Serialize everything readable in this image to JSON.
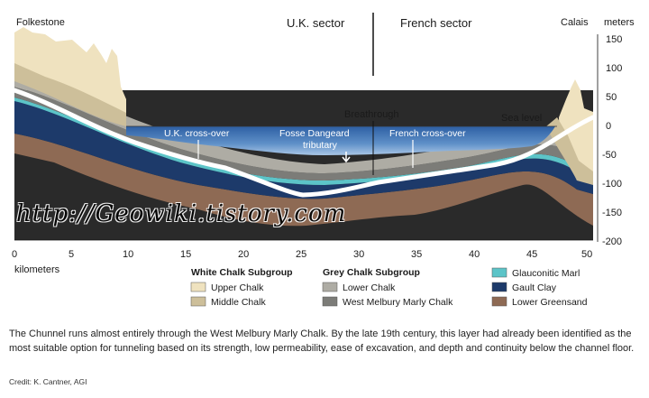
{
  "diagram": {
    "places": {
      "left": "Folkestone",
      "right": "Calais"
    },
    "sectors": {
      "uk": "U.K. sector",
      "french": "French sector"
    },
    "y_axis": {
      "unit": "meters",
      "ticks": [
        "150",
        "100",
        "50",
        "0",
        "-50",
        "-100",
        "-150",
        "-200"
      ]
    },
    "x_axis": {
      "label": "kilometers",
      "ticks": [
        "0",
        "5",
        "10",
        "15",
        "20",
        "25",
        "30",
        "35",
        "40",
        "45",
        "50"
      ]
    },
    "annotations": {
      "uk_crossover": "U.K. cross-over",
      "fosse_1": "Fosse Dangeard",
      "fosse_2": "tributary",
      "breakthrough": "Breathrough",
      "french_crossover": "French cross-over",
      "sea_level": "Sea level"
    }
  },
  "legend": {
    "white_chalk": {
      "title": "White Chalk Subgroup",
      "items": [
        {
          "label": "Upper Chalk",
          "color": "#efe2bf"
        },
        {
          "label": "Middle Chalk",
          "color": "#cdbf9a"
        }
      ]
    },
    "grey_chalk": {
      "title": "Grey Chalk Subgroup",
      "items": [
        {
          "label": "Lower Chalk",
          "color": "#aeaca4"
        },
        {
          "label": "West Melbury Marly Chalk",
          "color": "#7c7c78"
        }
      ]
    },
    "other": {
      "items": [
        {
          "label": "Glauconitic Marl",
          "color": "#5cc4c8"
        },
        {
          "label": "Gault Clay",
          "color": "#1d3a6a"
        },
        {
          "label": "Lower Greensand",
          "color": "#8e6a54"
        }
      ]
    }
  },
  "caption": "The Chunnel runs almost entirely through the West Melbury Marly Chalk. By the late 19th century, this layer had already been identified as the most suitable option for tunneling based on its strength, low permeability, ease of excavation, and depth and continuity below the channel floor.",
  "credit": "Credit: K. Cantner, AGI",
  "watermark": "http://Geowiki.tistory.com"
}
